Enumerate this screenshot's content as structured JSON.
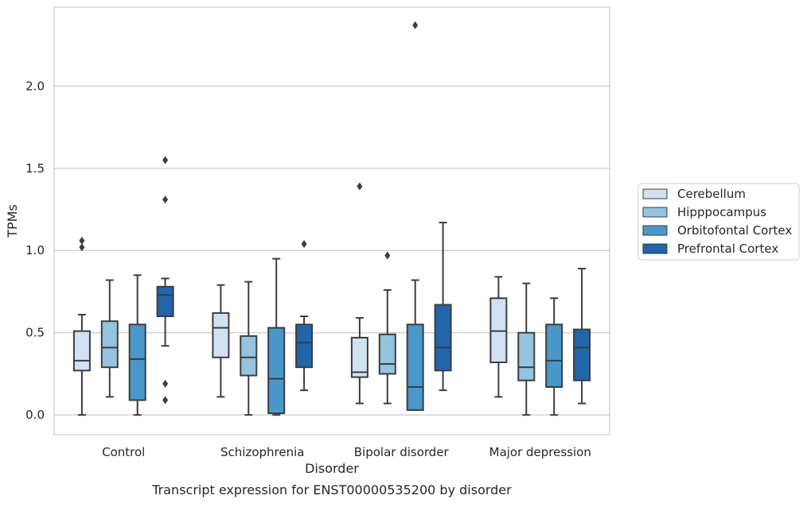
{
  "chart_data": {
    "type": "box",
    "title": "Transcript expression for ENST00000535200 by disorder",
    "xlabel": "Disorder",
    "ylabel": "TPMs",
    "ylim": [
      -0.12,
      2.48
    ],
    "yticks": [
      "0.0",
      "0.5",
      "1.0",
      "1.5",
      "2.0"
    ],
    "grid": true,
    "legend_position": "right",
    "categories": [
      "Control",
      "Schizophrenia",
      "Bipolar disorder",
      "Major depression"
    ],
    "series": [
      {
        "name": "Cerebellum",
        "color": "#d0e1f2",
        "boxes": [
          {
            "whisker_low": 0.0,
            "q1": 0.27,
            "median": 0.33,
            "q3": 0.51,
            "whisker_high": 0.61,
            "outliers": [
              1.06,
              1.02
            ]
          },
          {
            "whisker_low": 0.11,
            "q1": 0.35,
            "median": 0.53,
            "q3": 0.62,
            "whisker_high": 0.79,
            "outliers": []
          },
          {
            "whisker_low": 0.07,
            "q1": 0.23,
            "median": 0.26,
            "q3": 0.47,
            "whisker_high": 0.59,
            "outliers": [
              1.39
            ]
          },
          {
            "whisker_low": 0.11,
            "q1": 0.32,
            "median": 0.51,
            "q3": 0.71,
            "whisker_high": 0.84,
            "outliers": []
          }
        ]
      },
      {
        "name": "Hipppocampus",
        "color": "#94c4df",
        "boxes": [
          {
            "whisker_low": 0.11,
            "q1": 0.29,
            "median": 0.41,
            "q3": 0.57,
            "whisker_high": 0.82,
            "outliers": []
          },
          {
            "whisker_low": 0.0,
            "q1": 0.24,
            "median": 0.35,
            "q3": 0.48,
            "whisker_high": 0.81,
            "outliers": []
          },
          {
            "whisker_low": 0.07,
            "q1": 0.25,
            "median": 0.31,
            "q3": 0.49,
            "whisker_high": 0.76,
            "outliers": [
              0.97
            ]
          },
          {
            "whisker_low": 0.0,
            "q1": 0.21,
            "median": 0.29,
            "q3": 0.5,
            "whisker_high": 0.8,
            "outliers": []
          }
        ]
      },
      {
        "name": "Orbitofontal Cortex",
        "color": "#4a98c9",
        "boxes": [
          {
            "whisker_low": 0.0,
            "q1": 0.09,
            "median": 0.34,
            "q3": 0.55,
            "whisker_high": 0.85,
            "outliers": []
          },
          {
            "whisker_low": 0.0,
            "q1": 0.01,
            "median": 0.22,
            "q3": 0.53,
            "whisker_high": 0.95,
            "outliers": []
          },
          {
            "whisker_low": 0.03,
            "q1": 0.03,
            "median": 0.17,
            "q3": 0.55,
            "whisker_high": 0.82,
            "outliers": [
              2.37
            ]
          },
          {
            "whisker_low": 0.0,
            "q1": 0.17,
            "median": 0.33,
            "q3": 0.55,
            "whisker_high": 0.71,
            "outliers": []
          }
        ]
      },
      {
        "name": "Prefrontal Cortex",
        "color": "#2165ab",
        "boxes": [
          {
            "whisker_low": 0.42,
            "q1": 0.6,
            "median": 0.73,
            "q3": 0.78,
            "whisker_high": 0.83,
            "outliers": [
              1.55,
              1.31,
              0.19,
              0.09
            ]
          },
          {
            "whisker_low": 0.15,
            "q1": 0.29,
            "median": 0.44,
            "q3": 0.55,
            "whisker_high": 0.6,
            "outliers": [
              1.04
            ]
          },
          {
            "whisker_low": 0.15,
            "q1": 0.27,
            "median": 0.41,
            "q3": 0.67,
            "whisker_high": 1.17,
            "outliers": []
          },
          {
            "whisker_low": 0.07,
            "q1": 0.21,
            "median": 0.41,
            "q3": 0.52,
            "whisker_high": 0.89,
            "outliers": []
          }
        ]
      }
    ]
  }
}
